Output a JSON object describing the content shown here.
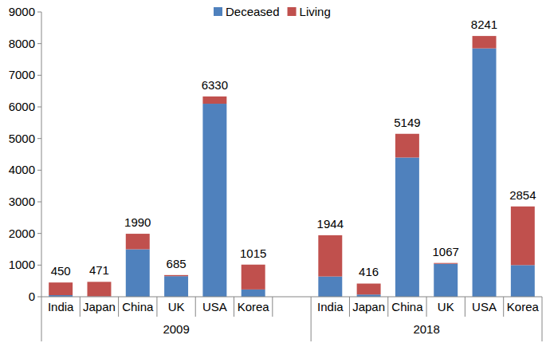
{
  "chart_data": {
    "type": "bar",
    "stacked": true,
    "grid": false,
    "legend": "top",
    "categories": [
      "India",
      "Japan",
      "China",
      "UK",
      "USA",
      "Korea",
      null,
      "India",
      "Japan",
      "China",
      "UK",
      "USA",
      "Korea"
    ],
    "groups": [
      {
        "label": "2009",
        "count": 7
      },
      {
        "label": "2018",
        "count": 6
      }
    ],
    "series": [
      {
        "name": "Deceased",
        "color": "#4f81bd",
        "values": [
          50,
          10,
          1500,
          650,
          6100,
          230,
          null,
          640,
          70,
          4400,
          1040,
          7850,
          1000
        ]
      },
      {
        "name": "Living",
        "color": "#c0504d",
        "values": [
          400,
          461,
          490,
          35,
          230,
          785,
          null,
          1304,
          346,
          749,
          27,
          391,
          1854
        ]
      }
    ],
    "totals": [
      450,
      471,
      1990,
      685,
      6330,
      1015,
      null,
      1944,
      416,
      5149,
      1067,
      8241,
      2854
    ],
    "ylim": [
      0,
      9000
    ],
    "yticks": [
      0,
      1000,
      2000,
      3000,
      4000,
      5000,
      6000,
      7000,
      8000,
      9000
    ]
  }
}
